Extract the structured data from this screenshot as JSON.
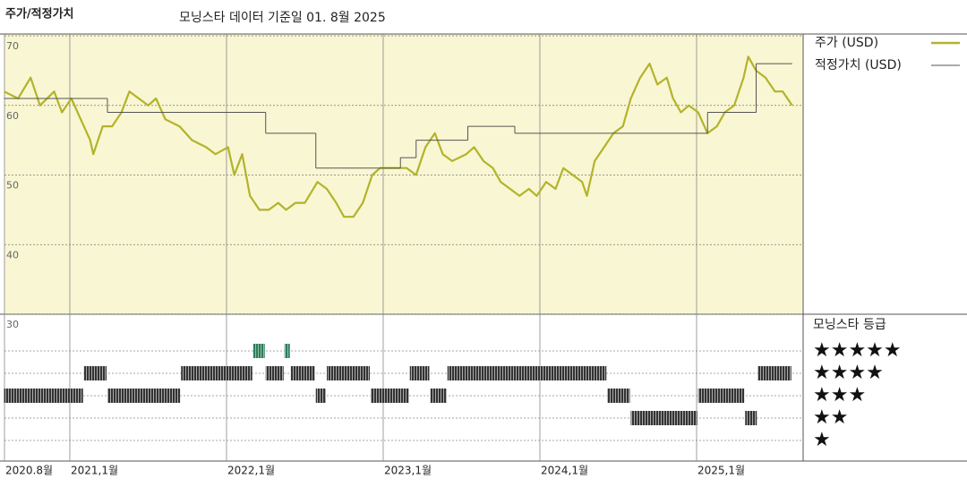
{
  "chart_data": {
    "type": "line",
    "title": "주가/적정가치",
    "subtitle": "모닝스타 데이터 기준일 01. 8월 2025",
    "xlim": [
      2020.583,
      2025.68
    ],
    "xticks": [
      {
        "value": 2020.583,
        "label": "2020.8월"
      },
      {
        "value": 2021,
        "label": "2021,1월"
      },
      {
        "value": 2022,
        "label": "2022,1월"
      },
      {
        "value": 2023,
        "label": "2023,1월"
      },
      {
        "value": 2024,
        "label": "2024,1월"
      },
      {
        "value": 2025,
        "label": "2025,1월"
      }
    ],
    "ylim": [
      30,
      70
    ],
    "yticks": [
      30,
      40,
      50,
      60,
      70
    ],
    "grid": true,
    "series": [
      {
        "name": "주가 (USD)",
        "color": "#b3b32b",
        "x": [
          2020.58,
          2020.67,
          2020.75,
          2020.81,
          2020.9,
          2020.95,
          2021.01,
          2021.07,
          2021.13,
          2021.15,
          2021.21,
          2021.27,
          2021.33,
          2021.38,
          2021.44,
          2021.5,
          2021.55,
          2021.61,
          2021.7,
          2021.78,
          2021.87,
          2021.93,
          2022.01,
          2022.05,
          2022.1,
          2022.15,
          2022.21,
          2022.27,
          2022.33,
          2022.38,
          2022.44,
          2022.5,
          2022.58,
          2022.64,
          2022.7,
          2022.75,
          2022.81,
          2022.87,
          2022.93,
          2022.98,
          2023.07,
          2023.15,
          2023.21,
          2023.27,
          2023.33,
          2023.38,
          2023.44,
          2023.53,
          2023.58,
          2023.64,
          2023.7,
          2023.75,
          2023.81,
          2023.87,
          2023.93,
          2023.98,
          2024.04,
          2024.1,
          2024.15,
          2024.21,
          2024.27,
          2024.3,
          2024.35,
          2024.41,
          2024.47,
          2024.53,
          2024.58,
          2024.64,
          2024.7,
          2024.75,
          2024.81,
          2024.85,
          2024.9,
          2024.95,
          2025.01,
          2025.07,
          2025.13,
          2025.18,
          2025.24,
          2025.3,
          2025.33,
          2025.38,
          2025.44,
          2025.5,
          2025.55,
          2025.61
        ],
        "values": [
          62,
          61,
          64,
          60,
          62,
          59,
          61,
          58,
          55,
          53,
          57,
          57,
          59,
          62,
          61,
          60,
          61,
          58,
          57,
          55,
          54,
          53,
          54,
          50,
          53,
          47,
          45,
          45,
          46,
          45,
          46,
          46,
          49,
          48,
          46,
          44,
          44,
          46,
          50,
          51,
          51,
          51,
          50,
          54,
          56,
          53,
          52,
          53,
          54,
          52,
          51,
          49,
          48,
          47,
          48,
          47,
          49,
          48,
          51,
          50,
          49,
          47,
          52,
          54,
          56,
          57,
          61,
          64,
          66,
          63,
          64,
          61,
          59,
          60,
          59,
          56,
          57,
          59,
          60,
          64,
          67,
          65,
          64,
          62,
          62,
          60
        ]
      },
      {
        "name": "적정가치 (USD)",
        "color": "#555555",
        "step": "post",
        "x": [
          2020.58,
          2021.24,
          2022.25,
          2022.57,
          2023.11,
          2023.21,
          2023.54,
          2023.84,
          2025.07,
          2025.38,
          2025.61
        ],
        "values": [
          61,
          59,
          56,
          51,
          52.5,
          55,
          57,
          56,
          59,
          66,
          66
        ]
      }
    ],
    "rating_title": "모닝스타 등급",
    "rating_labels": [
      "★★★★★",
      "★★★★",
      "★★★",
      "★★",
      "★"
    ],
    "rating_levels": [
      5,
      4,
      3,
      2,
      1
    ],
    "rating_bins": [
      2020.58,
      2021.09,
      2021.24,
      2021.71,
      2022.17,
      2022.25,
      2022.37,
      2022.41,
      2022.57,
      2022.64,
      2022.92,
      2023.17,
      2023.3,
      2023.41,
      2024.43,
      2024.58,
      2025.01,
      2025.31,
      2025.39,
      2025.61
    ],
    "ratings": [
      3,
      4,
      3,
      4,
      5,
      4,
      5,
      4,
      3,
      4,
      3,
      4,
      3,
      4,
      3,
      2,
      3,
      2,
      4
    ]
  }
}
